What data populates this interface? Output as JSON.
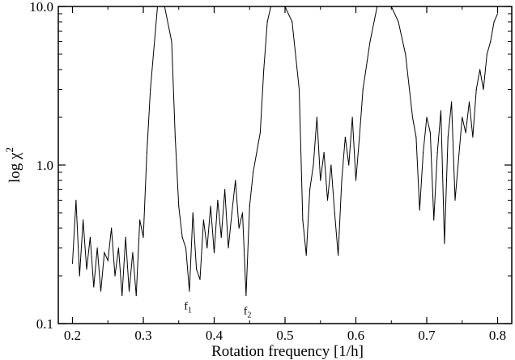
{
  "chart_data": {
    "type": "line",
    "title": "",
    "xlabel": "Rotation frequency [1/h]",
    "ylabel_base": "log χ",
    "ylabel_sup": "2",
    "x_range": [
      0.18,
      0.82
    ],
    "y_range": [
      0.1,
      10.0
    ],
    "y_scale": "log",
    "grid": false,
    "legend": "none",
    "line_color": "#000000",
    "x_ticks": [
      0.2,
      0.3,
      0.4,
      0.5,
      0.6,
      0.7,
      0.8
    ],
    "x_tick_labels": [
      "0.2",
      "0.3",
      "0.4",
      "0.5",
      "0.6",
      "0.7",
      "0.8"
    ],
    "y_ticks": [
      0.1,
      1.0,
      10.0
    ],
    "y_tick_labels": [
      "0.1",
      "1.0",
      "10.0"
    ],
    "series": [
      {
        "x": [
          0.2,
          0.205,
          0.21,
          0.215,
          0.22,
          0.225,
          0.23,
          0.235,
          0.24,
          0.245,
          0.25,
          0.255,
          0.26,
          0.265,
          0.27,
          0.275,
          0.28,
          0.285,
          0.29,
          0.295,
          0.3,
          0.305,
          0.31,
          0.32,
          0.33,
          0.34,
          0.345,
          0.35,
          0.355,
          0.36,
          0.365,
          0.37,
          0.375,
          0.38,
          0.385,
          0.39,
          0.395,
          0.4,
          0.405,
          0.41,
          0.415,
          0.42,
          0.425,
          0.43,
          0.435,
          0.44,
          0.445,
          0.45,
          0.455,
          0.46,
          0.465,
          0.47,
          0.475,
          0.48,
          0.49,
          0.5,
          0.51,
          0.52,
          0.525,
          0.53,
          0.535,
          0.54,
          0.545,
          0.55,
          0.555,
          0.56,
          0.565,
          0.57,
          0.575,
          0.58,
          0.585,
          0.59,
          0.595,
          0.6,
          0.605,
          0.61,
          0.62,
          0.63,
          0.64,
          0.65,
          0.66,
          0.67,
          0.68,
          0.685,
          0.69,
          0.695,
          0.7,
          0.705,
          0.71,
          0.715,
          0.72,
          0.725,
          0.73,
          0.735,
          0.74,
          0.745,
          0.75,
          0.755,
          0.76,
          0.765,
          0.77,
          0.775,
          0.78,
          0.785,
          0.79,
          0.795,
          0.8
        ],
        "y": [
          0.24,
          0.6,
          0.2,
          0.45,
          0.22,
          0.35,
          0.17,
          0.3,
          0.16,
          0.28,
          0.25,
          0.4,
          0.2,
          0.3,
          0.15,
          0.35,
          0.16,
          0.28,
          0.15,
          0.45,
          0.35,
          1.2,
          3.0,
          10.0,
          10.0,
          6.0,
          1.5,
          0.55,
          0.35,
          0.3,
          0.16,
          0.5,
          0.22,
          0.19,
          0.45,
          0.3,
          0.55,
          0.28,
          0.6,
          0.35,
          0.7,
          0.3,
          0.5,
          0.8,
          0.4,
          0.5,
          0.15,
          0.55,
          0.9,
          1.2,
          1.6,
          4.0,
          8.0,
          10.0,
          10.0,
          10.0,
          8.0,
          3.0,
          0.45,
          0.27,
          0.7,
          1.0,
          2.0,
          0.8,
          1.2,
          0.6,
          1.0,
          0.5,
          0.27,
          0.8,
          1.5,
          1.0,
          2.0,
          0.8,
          1.5,
          3.0,
          6.0,
          10.0,
          10.0,
          10.0,
          8.0,
          5.0,
          2.0,
          1.5,
          0.52,
          1.2,
          2.0,
          1.6,
          0.45,
          1.2,
          2.2,
          0.32,
          1.5,
          2.5,
          0.6,
          1.1,
          2.0,
          1.6,
          2.5,
          1.5,
          3.0,
          4.0,
          3.0,
          5.0,
          6.0,
          8.0,
          9.0
        ]
      }
    ],
    "annotations": [
      {
        "base": "f",
        "sub": "1",
        "x": 0.362,
        "y": 0.155
      },
      {
        "base": "f",
        "sub": "2",
        "x": 0.446,
        "y": 0.145
      }
    ]
  }
}
